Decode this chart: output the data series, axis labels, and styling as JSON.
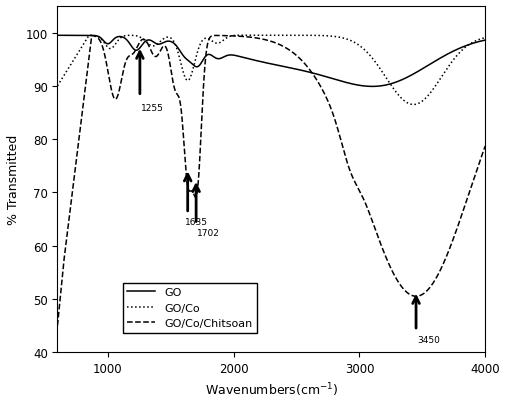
{
  "title": "",
  "xlabel": "Wavenumbers(cm⁻¹)",
  "ylabel": "% Transmitted",
  "xlim": [
    600,
    4000
  ],
  "ylim": [
    40,
    105
  ],
  "yticks": [
    40,
    50,
    60,
    70,
    80,
    90,
    100
  ],
  "xticks": [
    1000,
    2000,
    3000,
    4000
  ],
  "legend_labels": [
    "GO",
    "GO/Co",
    "GO/Co/Chitsoan"
  ],
  "background_color": "#ffffff",
  "line_color": "#000000"
}
